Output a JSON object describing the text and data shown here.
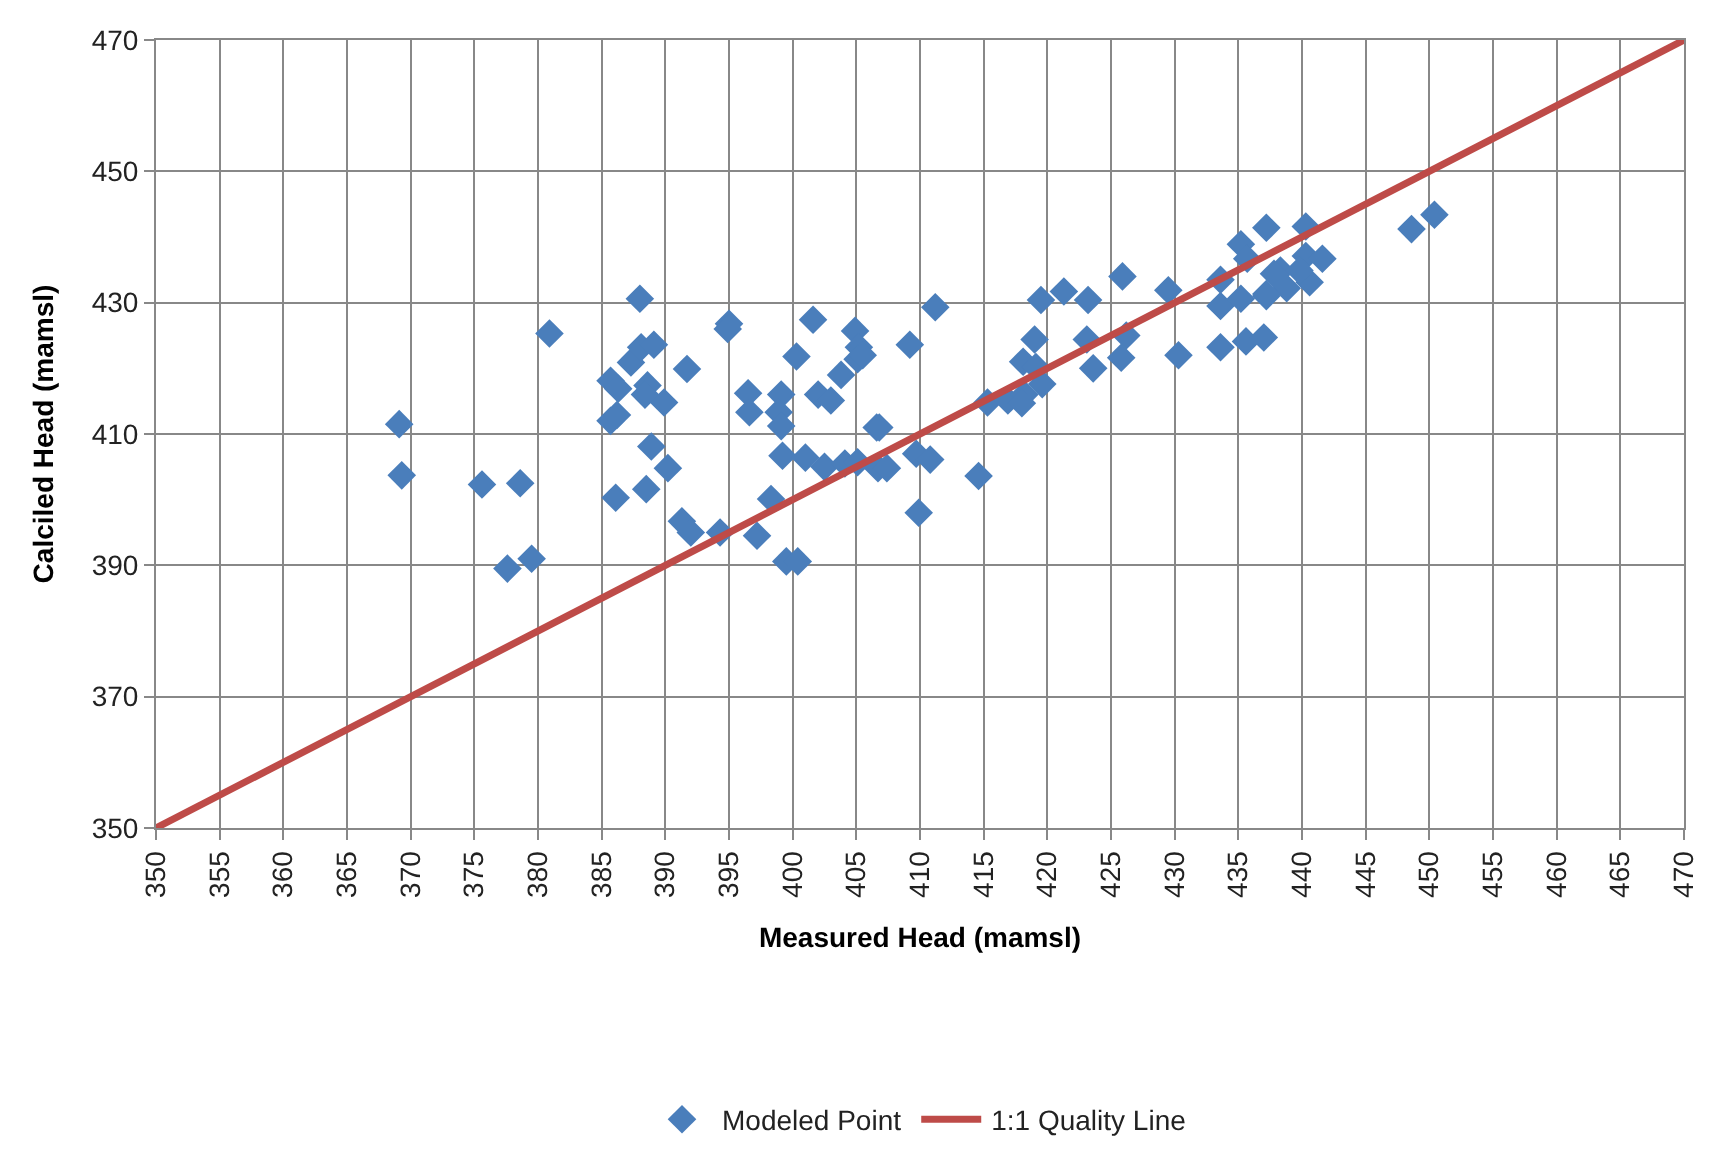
{
  "chart_data": {
    "type": "scatter",
    "xlabel": "Measured Head (mamsl)",
    "ylabel": "Calciled Head (mamsl)",
    "xlim": [
      350,
      470
    ],
    "xticks": [
      350,
      355,
      360,
      365,
      370,
      375,
      380,
      385,
      390,
      395,
      400,
      405,
      410,
      415,
      420,
      425,
      430,
      435,
      440,
      445,
      450,
      455,
      460,
      465,
      470
    ],
    "ylim": [
      350,
      470
    ],
    "yticks": [
      350,
      370,
      390,
      410,
      430,
      450,
      470
    ],
    "grid": true,
    "legend": "bottom",
    "marker": "diamond",
    "series": [
      {
        "name": "Modeled Point",
        "color": "#4a7ebb",
        "x": [
          388.0,
          380.9,
          391.7,
          395,
          394.9,
          401.6,
          404.9,
          405.2,
          405.1,
          403.8,
          400.3,
          396.5,
          396.6,
          399.1,
          398.9,
          399.1,
          402,
          403,
          406.6,
          399.2,
          401,
          402.5,
          404.1,
          405.1,
          398.3,
          391.3,
          392,
          394.3,
          397.2,
          399.5,
          400.4,
          386.1,
          388.5,
          388.9,
          390.2,
          385.7,
          386.3,
          388.6,
          388.4,
          389.9,
          385.7,
          386.2,
          387.3,
          388.1,
          389.1,
          369.1,
          369.3,
          375.6,
          378.6,
          377.6,
          379.5,
          406.7,
          411.2,
          419.5,
          421.3,
          423.2,
          425.9,
          429.5,
          409.2,
          419,
          418.1,
          419.1,
          419.6,
          423.1,
          426.2,
          423.6,
          425.8,
          430.3,
          433.6,
          435.6,
          437,
          433.6,
          435.2,
          437.2,
          415.3,
          416.9,
          418.2,
          418,
          406.8,
          409.7,
          410.8,
          407.4,
          414.6,
          409.9,
          437.2,
          440.3,
          435.2,
          435.7,
          433.6,
          438.3,
          440.3,
          441.6,
          440.6,
          438.8,
          437.2,
          448.6,
          450.4,
          439.8,
          437.8,
          405.5
        ],
        "values": [
          430.6,
          425.3,
          419.9,
          426.8,
          426,
          427.4,
          425.7,
          423.2,
          421.4,
          419,
          421.8,
          416.2,
          413.3,
          416,
          413.3,
          411.2,
          416,
          415.1,
          411,
          406.7,
          406.4,
          405,
          405.5,
          405.7,
          400.1,
          396.7,
          395,
          395,
          394.5,
          390.6,
          390.6,
          400.3,
          401.6,
          408.1,
          404.8,
          418.1,
          416.9,
          417.4,
          416,
          414.8,
          412,
          412.9,
          420.9,
          423.2,
          423.6,
          411.5,
          403.7,
          402.3,
          402.5,
          389.5,
          391,
          404.8,
          429.3,
          430.4,
          431.7,
          430.4,
          434,
          431.9,
          423.6,
          424.4,
          421,
          420.2,
          417.6,
          424.4,
          425,
          420,
          421.6,
          422,
          423.2,
          424.1,
          424.7,
          429.5,
          430.6,
          431,
          414.8,
          415.1,
          416,
          414.7,
          411,
          407,
          406.1,
          404.8,
          403.6,
          398,
          441.4,
          441.6,
          438.9,
          436.7,
          433.5,
          434.9,
          437.1,
          436.7,
          433.1,
          432.2,
          431.3,
          441.2,
          443.4,
          434.9,
          434.4,
          422
        ]
      },
      {
        "name": "1:1 Quality Line",
        "color": "#be4b48",
        "type": "line",
        "marker": "none",
        "line_style": "solid",
        "x": [
          350,
          470
        ],
        "values": [
          350,
          470
        ]
      }
    ]
  }
}
